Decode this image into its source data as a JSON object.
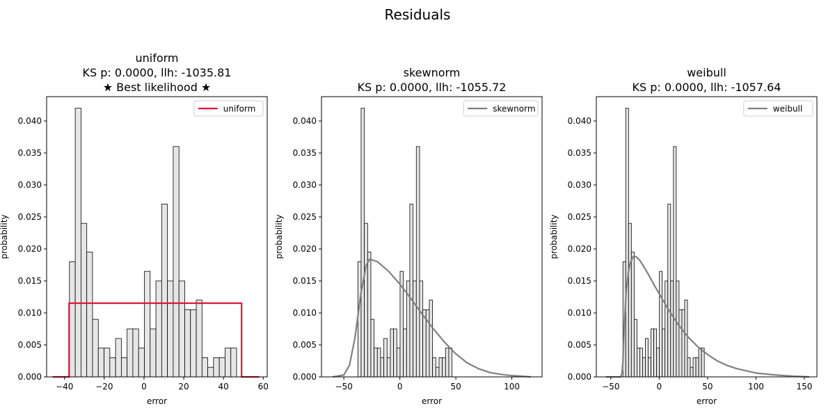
{
  "figure": {
    "suptitle": "Residuals"
  },
  "chart_data": [
    {
      "type": "bar",
      "title_lines": [
        "uniform",
        "KS p: 0.0000, llh: -1035.81",
        "★ Best likelihood ★"
      ],
      "xlabel": "error",
      "ylabel": "probability",
      "xlim": [
        -49,
        62
      ],
      "ylim": [
        0,
        0.0438
      ],
      "xticks": [
        -40,
        -20,
        0,
        20,
        40,
        60
      ],
      "yticks": [
        0.0,
        0.005,
        0.01,
        0.015,
        0.02,
        0.025,
        0.03,
        0.035,
        0.04
      ],
      "histogram": {
        "bin_start": -37.5,
        "bin_width": 2.9,
        "values": [
          0.018,
          0.042,
          0.024,
          0.0195,
          0.009,
          0.0045,
          0.0045,
          0.003,
          0.006,
          0.003,
          0.0075,
          0.0075,
          0.0045,
          0.0165,
          0.0075,
          0.015,
          0.027,
          0.015,
          0.036,
          0.015,
          0.0105,
          0.0105,
          0.012,
          0.003,
          0.0015,
          0.003,
          0.003,
          0.0045,
          0.0045
        ],
        "fill": "#e6e6e6",
        "edge": "#000000"
      },
      "fit": {
        "name": "uniform",
        "color": "#dc143c",
        "kind": "uniform",
        "range": [
          -46,
          58
        ],
        "support": [
          -37.7,
          49.1
        ],
        "density": 0.01152
      },
      "legend": {
        "label": "uniform",
        "placement": "top-right"
      }
    },
    {
      "type": "bar",
      "title_lines": [
        "skewnorm",
        "KS p: 0.0000, llh: -1055.72"
      ],
      "xlabel": "error",
      "ylabel": "probability",
      "xlim": [
        -70,
        127
      ],
      "ylim": [
        0,
        0.0438
      ],
      "xticks": [
        -50,
        0,
        50,
        100
      ],
      "yticks": [
        0.0,
        0.005,
        0.01,
        0.015,
        0.02,
        0.025,
        0.03,
        0.035,
        0.04
      ],
      "histogram": {
        "bin_start": -37.5,
        "bin_width": 2.9,
        "values": [
          0.018,
          0.042,
          0.024,
          0.0195,
          0.009,
          0.0045,
          0.0045,
          0.003,
          0.006,
          0.003,
          0.0075,
          0.0075,
          0.0045,
          0.0165,
          0.0075,
          0.015,
          0.027,
          0.015,
          0.036,
          0.015,
          0.0105,
          0.0105,
          0.012,
          0.003,
          0.0015,
          0.003,
          0.003,
          0.0045,
          0.0045
        ],
        "fill": "#e6e6e6",
        "edge": "#000000"
      },
      "fit": {
        "name": "skewnorm",
        "color": "#808080",
        "kind": "curve",
        "x": [
          -60,
          -50,
          -45,
          -40,
          -35,
          -30,
          -27,
          -20,
          -10,
          0,
          10,
          20,
          30,
          40,
          50,
          60,
          70,
          80,
          90,
          100,
          110,
          117
        ],
        "y": [
          0.0,
          0.0003,
          0.0018,
          0.0062,
          0.0128,
          0.0175,
          0.0184,
          0.018,
          0.0165,
          0.0145,
          0.0122,
          0.0098,
          0.0075,
          0.0054,
          0.0036,
          0.0022,
          0.0013,
          0.0007,
          0.0004,
          0.0002,
          0.0001,
          0.0
        ]
      },
      "legend": {
        "label": "skewnorm",
        "placement": "top-right"
      }
    },
    {
      "type": "bar",
      "title_lines": [
        "weibull",
        "KS p: 0.0000, llh: -1057.64"
      ],
      "xlabel": "error",
      "ylabel": "probability",
      "xlim": [
        -65,
        163
      ],
      "ylim": [
        0,
        0.0438
      ],
      "xticks": [
        -50,
        0,
        50,
        100,
        150
      ],
      "yticks": [
        0.0,
        0.005,
        0.01,
        0.015,
        0.02,
        0.025,
        0.03,
        0.035,
        0.04
      ],
      "histogram": {
        "bin_start": -37.5,
        "bin_width": 2.9,
        "values": [
          0.018,
          0.042,
          0.024,
          0.0195,
          0.009,
          0.0045,
          0.0045,
          0.003,
          0.006,
          0.003,
          0.0075,
          0.0075,
          0.0045,
          0.0165,
          0.0075,
          0.015,
          0.027,
          0.015,
          0.036,
          0.015,
          0.0105,
          0.0105,
          0.012,
          0.003,
          0.0015,
          0.003,
          0.003,
          0.0045,
          0.0045
        ],
        "fill": "#e6e6e6",
        "edge": "#000000"
      },
      "fit": {
        "name": "weibull",
        "color": "#808080",
        "kind": "curve",
        "x": [
          -55,
          -40,
          -38.5,
          -37.5,
          -36,
          -34,
          -32,
          -30,
          -27,
          -24,
          -20,
          -15,
          -10,
          -5,
          0,
          10,
          20,
          30,
          40,
          50,
          60,
          70,
          80,
          100,
          120,
          140,
          155
        ],
        "y": [
          0.0,
          0.0,
          0.0005,
          0.0025,
          0.0085,
          0.0135,
          0.0162,
          0.0178,
          0.0188,
          0.0188,
          0.0182,
          0.017,
          0.0157,
          0.0143,
          0.013,
          0.0104,
          0.0081,
          0.0062,
          0.0047,
          0.0035,
          0.0025,
          0.0018,
          0.0013,
          0.0006,
          0.0003,
          0.0001,
          0.0
        ]
      },
      "legend": {
        "label": "weibull",
        "placement": "top-right"
      }
    }
  ]
}
